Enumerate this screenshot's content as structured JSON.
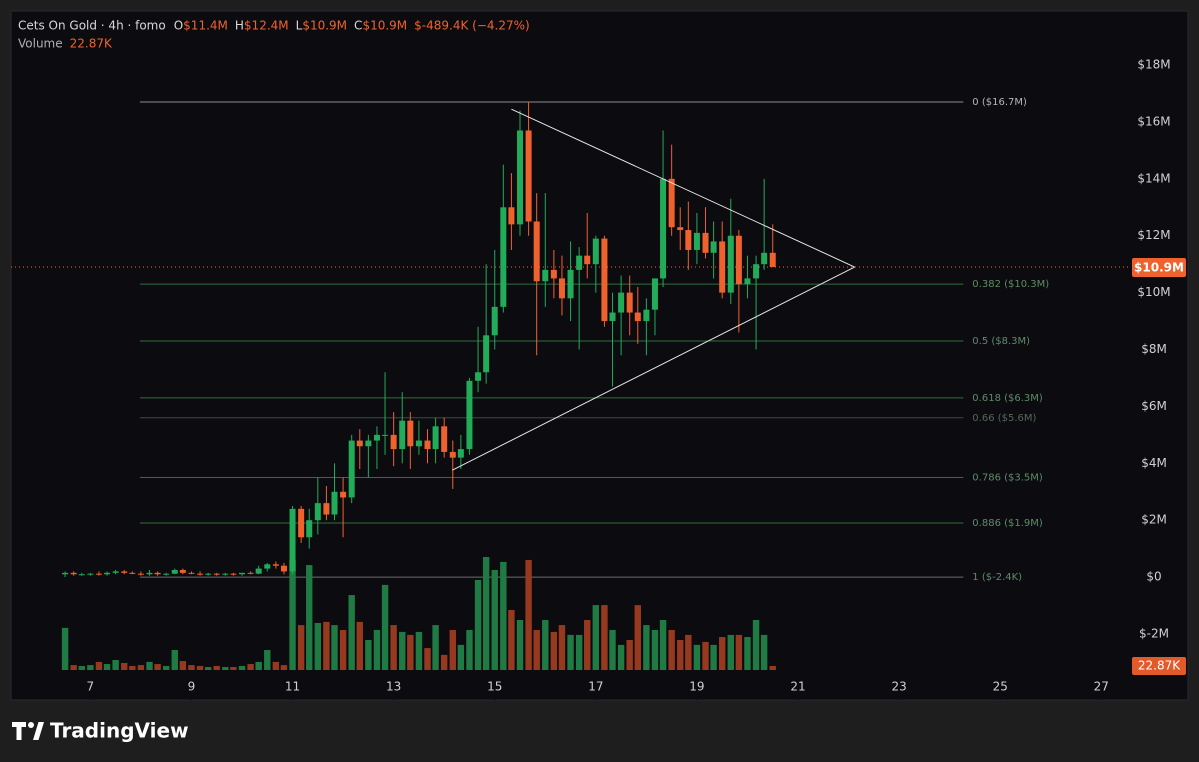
{
  "chart_data": {
    "type": "candlestick",
    "title": "Cets On Gold · 4h · fomo",
    "header_values": [
      {
        "key": "O",
        "value": "$11.4M"
      },
      {
        "key": "H",
        "value": "$12.4M"
      },
      {
        "key": "L",
        "value": "$10.9M"
      },
      {
        "key": "C",
        "value": "$10.9M"
      },
      {
        "key": "",
        "value": "$-489.4K (−4.27%)"
      }
    ],
    "volume_title": "Volume",
    "volume_value": "22.87K",
    "up_color": "#22ab58",
    "down_color": "#f0622d",
    "volume_up_color": "#1f7a44",
    "volume_down_color": "#96391f",
    "x": [
      6.5,
      6.67,
      6.83,
      7,
      7.17,
      7.33,
      7.5,
      7.67,
      7.83,
      8,
      8.17,
      8.33,
      8.5,
      8.67,
      8.83,
      9,
      9.17,
      9.33,
      9.5,
      9.67,
      9.83,
      10,
      10.17,
      10.33,
      10.5,
      10.67,
      10.83,
      11,
      11.17,
      11.33,
      11.5,
      11.67,
      11.83,
      12,
      12.17,
      12.33,
      12.5,
      12.67,
      12.83,
      13,
      13.17,
      13.33,
      13.5,
      13.67,
      13.83,
      14,
      14.17,
      14.33,
      14.5,
      14.67,
      14.83,
      15,
      15.17,
      15.33,
      15.5,
      15.67,
      15.83,
      16,
      16.17,
      16.33,
      16.5,
      16.67,
      16.83,
      17,
      17.17,
      17.33,
      17.5,
      17.67,
      17.83,
      18,
      18.17,
      18.33,
      18.5,
      18.67,
      18.83,
      19,
      19.17,
      19.33,
      19.5,
      19.67,
      19.83,
      20,
      20.17,
      20.33,
      20.5
    ],
    "open": [
      100000,
      150000,
      100000,
      100000,
      120000,
      100000,
      150000,
      200000,
      150000,
      120000,
      100000,
      150000,
      100000,
      120000,
      250000,
      150000,
      120000,
      100000,
      120000,
      100000,
      120000,
      100000,
      150000,
      120000,
      300000,
      450000,
      400000,
      200000,
      2400000,
      1400000,
      2000000,
      2600000,
      2200000,
      3000000,
      2800000,
      4800000,
      4600000,
      4800000,
      5000000,
      5000000,
      4500000,
      5500000,
      4600000,
      4800000,
      4500000,
      5300000,
      4400000,
      4200000,
      4500000,
      6900000,
      7200000,
      8500000,
      9500000,
      13000000,
      12400000,
      15700000,
      12500000,
      10400000,
      10800000,
      10500000,
      9800000,
      10800000,
      11300000,
      11000000,
      11900000,
      9000000,
      9300000,
      10000000,
      9300000,
      9000000,
      9400000,
      10500000,
      14000000,
      12300000,
      12200000,
      11500000,
      12100000,
      11400000,
      11800000,
      10000000,
      12000000,
      10300000,
      10500000,
      11000000,
      11400000
    ],
    "high": [
      200000,
      200000,
      150000,
      150000,
      200000,
      200000,
      250000,
      250000,
      200000,
      200000,
      250000,
      200000,
      150000,
      300000,
      300000,
      200000,
      200000,
      150000,
      150000,
      150000,
      150000,
      150000,
      200000,
      400000,
      500000,
      550000,
      500000,
      2500000,
      2500000,
      2400000,
      3500000,
      3200000,
      4000000,
      3500000,
      5000000,
      5200000,
      5000000,
      5300000,
      7200000,
      5800000,
      6500000,
      5800000,
      5500000,
      5200000,
      5600000,
      5600000,
      4800000,
      5000000,
      7000000,
      8800000,
      11000000,
      11500000,
      14500000,
      14200000,
      16400000,
      16700000,
      13500000,
      13500000,
      11500000,
      11300000,
      11800000,
      11600000,
      12800000,
      12000000,
      12000000,
      10000000,
      10600000,
      10600000,
      10200000,
      9800000,
      10500000,
      15700000,
      15200000,
      13000000,
      13200000,
      12800000,
      13000000,
      12500000,
      12500000,
      13300000,
      12200000,
      11300000,
      11300000,
      14000000,
      12400000
    ],
    "low": [
      0,
      50000,
      50000,
      50000,
      50000,
      50000,
      100000,
      100000,
      100000,
      50000,
      50000,
      50000,
      50000,
      100000,
      100000,
      100000,
      50000,
      50000,
      50000,
      50000,
      50000,
      50000,
      100000,
      100000,
      200000,
      300000,
      100000,
      100000,
      1200000,
      1000000,
      1500000,
      2000000,
      2000000,
      1400000,
      2600000,
      3800000,
      3500000,
      3800000,
      4300000,
      3900000,
      4000000,
      3800000,
      4300000,
      4000000,
      4000000,
      4200000,
      3100000,
      3800000,
      4300000,
      6500000,
      6800000,
      8000000,
      9300000,
      11500000,
      12000000,
      12000000,
      7800000,
      9500000,
      9800000,
      9200000,
      9000000,
      8000000,
      10500000,
      10000000,
      8800000,
      6700000,
      7800000,
      8500000,
      8200000,
      7800000,
      8500000,
      10200000,
      12000000,
      11500000,
      10800000,
      11000000,
      11200000,
      10500000,
      9800000,
      9600000,
      8600000,
      9800000,
      8000000,
      10800000,
      10900000
    ],
    "close": [
      150000,
      100000,
      100000,
      120000,
      100000,
      150000,
      200000,
      150000,
      120000,
      100000,
      150000,
      100000,
      120000,
      250000,
      150000,
      120000,
      100000,
      120000,
      100000,
      120000,
      100000,
      150000,
      120000,
      300000,
      450000,
      400000,
      200000,
      2400000,
      1400000,
      2000000,
      2600000,
      2200000,
      3000000,
      2800000,
      4800000,
      4600000,
      4800000,
      5000000,
      5000000,
      4500000,
      5500000,
      4600000,
      4800000,
      4500000,
      5300000,
      4400000,
      4200000,
      4500000,
      6900000,
      7200000,
      8500000,
      9500000,
      13000000,
      12400000,
      15700000,
      12500000,
      10400000,
      10800000,
      10500000,
      9800000,
      10800000,
      11300000,
      11000000,
      11900000,
      9000000,
      9300000,
      10000000,
      9300000,
      9000000,
      9400000,
      10500000,
      14000000,
      12300000,
      12200000,
      11500000,
      12100000,
      11400000,
      11800000,
      10000000,
      12000000,
      10300000,
      10500000,
      11000000,
      11400000,
      10900000
    ],
    "volume": [
      240000,
      28000,
      23000,
      28000,
      46000,
      34000,
      57000,
      40000,
      23000,
      28000,
      46000,
      34000,
      23000,
      114000,
      51000,
      28000,
      23000,
      17000,
      23000,
      17000,
      17000,
      23000,
      34000,
      46000,
      114000,
      46000,
      28000,
      627000,
      256000,
      598000,
      268000,
      274000,
      256000,
      228000,
      427000,
      274000,
      171000,
      228000,
      485000,
      256000,
      217000,
      200000,
      217000,
      125000,
      256000,
      86000,
      228000,
      143000,
      228000,
      513000,
      644000,
      570000,
      616000,
      342000,
      285000,
      627000,
      228000,
      285000,
      217000,
      256000,
      200000,
      200000,
      285000,
      370000,
      370000,
      228000,
      143000,
      171000,
      370000,
      256000,
      228000,
      285000,
      228000,
      171000,
      200000,
      143000,
      160000,
      143000,
      188000,
      200000,
      200000,
      188000,
      285000,
      200000,
      22870
    ],
    "xlim": [
      5.43,
      27.37
    ],
    "xticks": [
      7,
      9,
      11,
      13,
      15,
      17,
      19,
      21,
      23,
      25,
      27
    ],
    "ylim": [
      -4320000,
      19900000
    ],
    "yticks": [
      {
        "value": -2000000,
        "label": "$-2M"
      },
      {
        "value": 0,
        "label": "$0"
      },
      {
        "value": 2000000,
        "label": "$2M"
      },
      {
        "value": 4000000,
        "label": "$4M"
      },
      {
        "value": 6000000,
        "label": "$6M"
      },
      {
        "value": 8000000,
        "label": "$8M"
      },
      {
        "value": 10000000,
        "label": "$10M"
      },
      {
        "value": 12000000,
        "label": "$12M"
      },
      {
        "value": 14000000,
        "label": "$14M"
      },
      {
        "value": 16000000,
        "label": "$16M"
      },
      {
        "value": 18000000,
        "label": "$18M"
      }
    ],
    "fib_x": [
      7.98,
      24.27
    ],
    "fib_levels": [
      {
        "value": 16700000,
        "label": "0 ($16.7M)",
        "color": "#8c8c8c"
      },
      {
        "value": 10300000,
        "label": "0.382 ($10.3M)",
        "color": "#2f6e3e"
      },
      {
        "value": 8300000,
        "label": "0.5 ($8.3M)",
        "color": "#2f6e3e"
      },
      {
        "value": 6300000,
        "label": "0.618 ($6.3M)",
        "color": "#2f6e3e"
      },
      {
        "value": 5600000,
        "label": "0.66 ($5.6M)",
        "color": "#3b4a40"
      },
      {
        "value": 3500000,
        "label": "0.786 ($3.5M)",
        "color": "#2f6e3e"
      },
      {
        "value": 1900000,
        "label": "0.886 ($1.9M)",
        "color": "#2f6e3e"
      },
      {
        "value": -2400,
        "label": "1 ($-2.4K)",
        "color": "#6b6b6b"
      }
    ],
    "triangle": [
      {
        "x": 15.33,
        "y": 16450000
      },
      {
        "x": 22.12,
        "y": 10900000
      },
      {
        "x": 14.16,
        "y": 3760000
      }
    ],
    "last_price": {
      "value": 10900000,
      "label": "$10.9M"
    },
    "brand": "TradingView"
  }
}
